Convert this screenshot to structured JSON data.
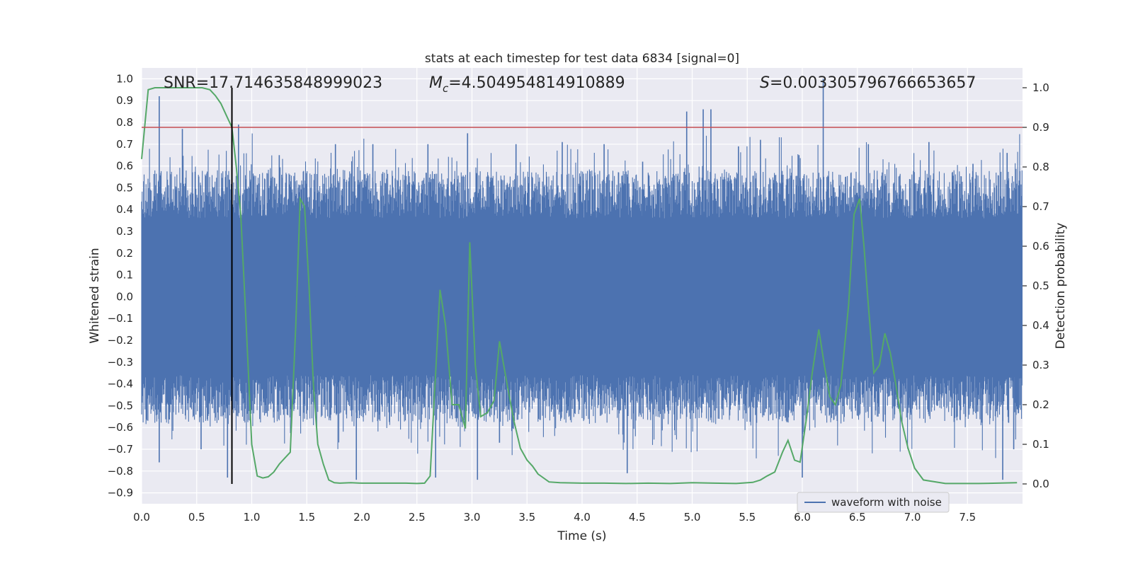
{
  "chart_data": {
    "type": "line",
    "title": "stats at each timestep for test data 6834 [signal=0]",
    "xlabel": "Time (s)",
    "ylabel_left": "Whitened strain",
    "ylabel_right": "Detection probability",
    "xlim": [
      0.0,
      8.0
    ],
    "ylim_left": [
      -0.95,
      1.05
    ],
    "ylim_right": [
      -0.05,
      1.05
    ],
    "x_ticks": [
      0.0,
      0.5,
      1.0,
      1.5,
      2.0,
      2.5,
      3.0,
      3.5,
      4.0,
      4.5,
      5.0,
      5.5,
      6.0,
      6.5,
      7.0,
      7.5
    ],
    "x_tick_labels": [
      "0.0",
      "0.5",
      "1.0",
      "1.5",
      "2.0",
      "2.5",
      "3.0",
      "3.5",
      "4.0",
      "4.5",
      "5.0",
      "5.5",
      "6.0",
      "6.5",
      "7.0",
      "7.5"
    ],
    "y_left_ticks": [
      1.0,
      0.9,
      0.8,
      0.7,
      0.6,
      0.5,
      0.4,
      0.3,
      0.2,
      0.1,
      0.0,
      -0.1,
      -0.2,
      -0.3,
      -0.4,
      -0.5,
      -0.6,
      -0.7,
      -0.8,
      -0.9
    ],
    "y_left_tick_labels": [
      "1.0",
      "0.9",
      "0.8",
      "0.7",
      "0.6",
      "0.5",
      "0.4",
      "0.3",
      "0.2",
      "0.1",
      "0.0",
      "−0.1",
      "−0.2",
      "−0.3",
      "−0.4",
      "−0.5",
      "−0.6",
      "−0.7",
      "−0.8",
      "−0.9"
    ],
    "y_right_ticks": [
      1.0,
      0.9,
      0.8,
      0.7,
      0.6,
      0.5,
      0.4,
      0.3,
      0.2,
      0.1,
      0.0
    ],
    "y_right_tick_labels": [
      "1.0",
      "0.9",
      "0.8",
      "0.7",
      "0.6",
      "0.5",
      "0.4",
      "0.3",
      "0.2",
      "0.1",
      "0.0"
    ],
    "annotations": {
      "snr": "SNR=17.714635848999023",
      "mc_symbol": "M",
      "mc_sub": "c",
      "mc_value": "=4.504954814910889",
      "s_symbol": "S",
      "s_value": "=0.003305796766653657"
    },
    "threshold": {
      "axis": "right",
      "value": 0.9,
      "color": "#c44e52"
    },
    "marker_line": {
      "x": 0.82,
      "y_range_right": [
        0.0,
        1.0
      ],
      "color": "#000000"
    },
    "legend": {
      "label": "waveform with noise",
      "placement": "lower right"
    },
    "series": [
      {
        "name": "waveform with noise",
        "axis": "left",
        "color": "#4c72b0",
        "kind": "noise",
        "noise": {
          "core_amplitude": 0.36,
          "spike_range": [
            -0.84,
            1.0
          ]
        },
        "spikes": [
          {
            "x": 0.16,
            "y": 0.92
          },
          {
            "x": 0.37,
            "y": 0.77
          },
          {
            "x": 0.88,
            "y": 0.79
          },
          {
            "x": 1.25,
            "y": 0.65
          },
          {
            "x": 1.76,
            "y": 0.7
          },
          {
            "x": 2.1,
            "y": 0.7
          },
          {
            "x": 2.6,
            "y": 0.7
          },
          {
            "x": 2.96,
            "y": 0.75
          },
          {
            "x": 3.4,
            "y": 0.7
          },
          {
            "x": 3.82,
            "y": 0.71
          },
          {
            "x": 4.2,
            "y": 0.7
          },
          {
            "x": 4.55,
            "y": 0.62
          },
          {
            "x": 5.1,
            "y": 0.86
          },
          {
            "x": 5.17,
            "y": 0.86
          },
          {
            "x": 4.95,
            "y": 0.85
          },
          {
            "x": 5.42,
            "y": 0.69
          },
          {
            "x": 5.62,
            "y": 0.72
          },
          {
            "x": 5.97,
            "y": 0.65
          },
          {
            "x": 6.19,
            "y": 1.0
          },
          {
            "x": 6.6,
            "y": 0.7
          },
          {
            "x": 7.15,
            "y": 0.71
          },
          {
            "x": 7.55,
            "y": 0.61
          },
          {
            "x": 7.86,
            "y": 0.66
          },
          {
            "x": 0.16,
            "y": -0.76
          },
          {
            "x": 0.78,
            "y": -0.83
          },
          {
            "x": 1.95,
            "y": -0.84
          },
          {
            "x": 2.67,
            "y": -0.83
          },
          {
            "x": 3.05,
            "y": -0.84
          },
          {
            "x": 4.41,
            "y": -0.81
          },
          {
            "x": 6.0,
            "y": -0.83
          },
          {
            "x": 7.82,
            "y": -0.84
          },
          {
            "x": 7.92,
            "y": -0.7
          },
          {
            "x": 0.54,
            "y": -0.7
          },
          {
            "x": 3.25,
            "y": -0.67
          }
        ]
      },
      {
        "name": "detection probability",
        "axis": "right",
        "color": "#55a868",
        "x": [
          0.0,
          0.06,
          0.12,
          0.2,
          0.3,
          0.4,
          0.5,
          0.55,
          0.62,
          0.67,
          0.72,
          0.77,
          0.82,
          0.86,
          0.9,
          0.95,
          1.0,
          1.05,
          1.1,
          1.15,
          1.2,
          1.25,
          1.3,
          1.35,
          1.4,
          1.44,
          1.48,
          1.52,
          1.56,
          1.6,
          1.65,
          1.7,
          1.75,
          1.8,
          1.9,
          2.0,
          2.2,
          2.4,
          2.5,
          2.57,
          2.62,
          2.67,
          2.71,
          2.76,
          2.82,
          2.88,
          2.94,
          2.98,
          3.03,
          3.08,
          3.14,
          3.2,
          3.25,
          3.32,
          3.38,
          3.44,
          3.5,
          3.55,
          3.6,
          3.7,
          3.8,
          4.0,
          4.2,
          4.4,
          4.6,
          4.8,
          5.0,
          5.2,
          5.4,
          5.55,
          5.62,
          5.68,
          5.75,
          5.82,
          5.87,
          5.93,
          5.98,
          6.04,
          6.09,
          6.15,
          6.2,
          6.25,
          6.3,
          6.35,
          6.42,
          6.47,
          6.52,
          6.56,
          6.6,
          6.65,
          6.7,
          6.75,
          6.8,
          6.85,
          6.9,
          6.96,
          7.02,
          7.1,
          7.3,
          7.6,
          7.95
        ],
        "y": [
          0.82,
          0.995,
          1.0,
          1.0,
          1.0,
          1.0,
          1.0,
          1.0,
          0.995,
          0.98,
          0.96,
          0.93,
          0.9,
          0.8,
          0.68,
          0.4,
          0.1,
          0.02,
          0.015,
          0.018,
          0.03,
          0.05,
          0.065,
          0.08,
          0.4,
          0.72,
          0.7,
          0.5,
          0.25,
          0.1,
          0.05,
          0.01,
          0.003,
          0.002,
          0.003,
          0.002,
          0.002,
          0.002,
          0.001,
          0.002,
          0.02,
          0.28,
          0.49,
          0.4,
          0.2,
          0.2,
          0.14,
          0.61,
          0.3,
          0.17,
          0.18,
          0.21,
          0.36,
          0.25,
          0.16,
          0.09,
          0.06,
          0.045,
          0.025,
          0.005,
          0.003,
          0.002,
          0.002,
          0.001,
          0.002,
          0.001,
          0.003,
          0.002,
          0.001,
          0.004,
          0.01,
          0.02,
          0.03,
          0.08,
          0.11,
          0.06,
          0.055,
          0.17,
          0.28,
          0.39,
          0.3,
          0.22,
          0.2,
          0.25,
          0.45,
          0.68,
          0.72,
          0.6,
          0.45,
          0.28,
          0.3,
          0.38,
          0.33,
          0.25,
          0.16,
          0.09,
          0.04,
          0.01,
          0.001,
          0.001,
          0.003
        ]
      }
    ]
  }
}
